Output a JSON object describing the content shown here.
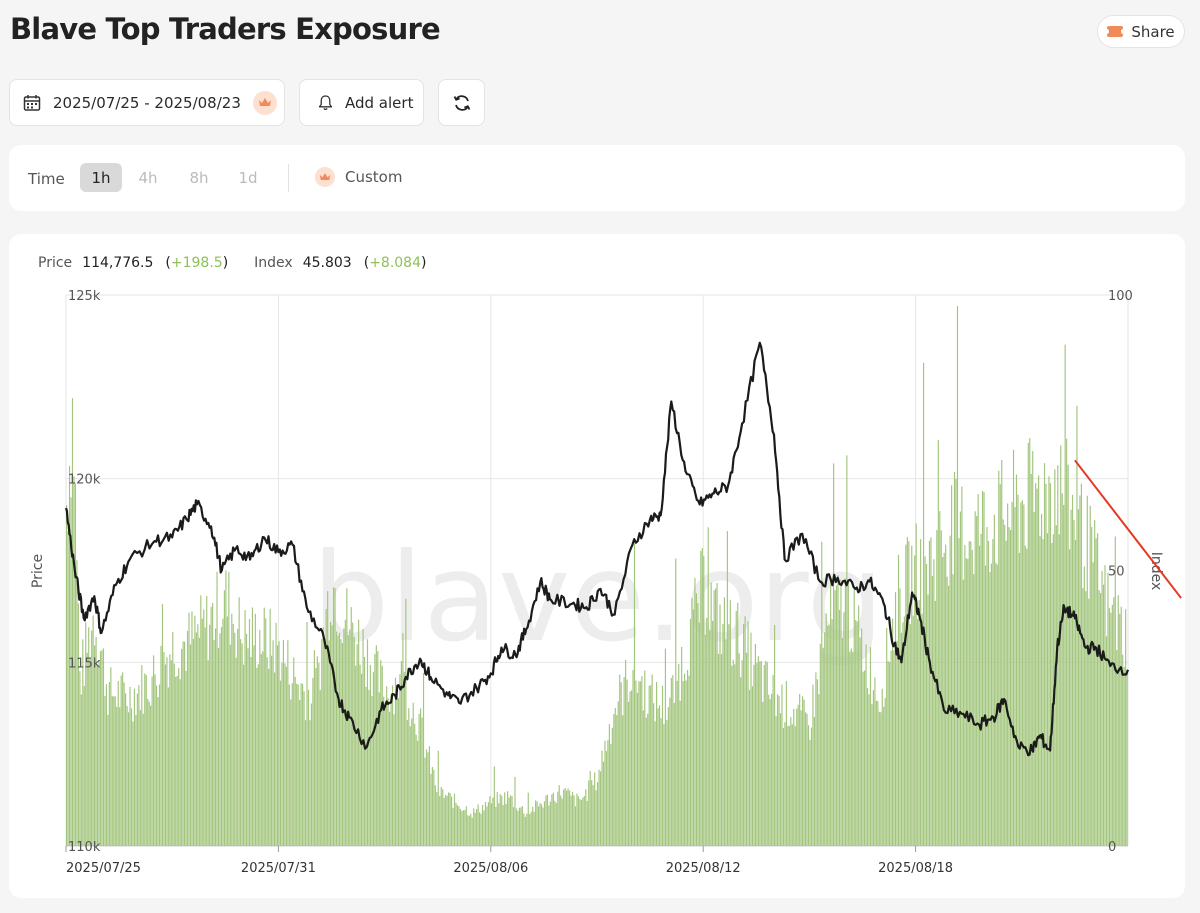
{
  "header": {
    "title": "Blave Top Traders Exposure",
    "share_label": "Share"
  },
  "toolbar": {
    "date_range": "2025/07/25 - 2025/08/23",
    "add_alert_label": "Add alert"
  },
  "timeframe": {
    "label": "Time",
    "options": [
      "1h",
      "4h",
      "8h",
      "1d"
    ],
    "active": "1h",
    "custom_label": "Custom"
  },
  "legend": {
    "price_label": "Price",
    "price_value": "114,776.5",
    "price_change": "+198.5",
    "index_label": "Index",
    "index_value": "45.803",
    "index_change": "+8.084"
  },
  "watermark": "blave.org",
  "colors": {
    "bar": "#a3c67e",
    "line": "#1b1b1b",
    "accent": "#f08a5d",
    "annotation": "#e53a22",
    "positive": "#8fc05a"
  },
  "chart_data": {
    "type": "bar+line",
    "xlabel": "",
    "ylabel": "Price",
    "y2label": "Index",
    "ylim": [
      110000,
      125000
    ],
    "y2lim": [
      0,
      100
    ],
    "yticks": [
      {
        "v": 125000,
        "label": "125k"
      },
      {
        "v": 120000,
        "label": "120k"
      },
      {
        "v": 115000,
        "label": "115k"
      },
      {
        "v": 110000,
        "label": "110k"
      }
    ],
    "y2ticks": [
      {
        "v": 100,
        "label": "100"
      },
      {
        "v": 50,
        "label": "50"
      },
      {
        "v": 0,
        "label": "0"
      }
    ],
    "xticks": [
      {
        "d": 0,
        "label": "2025/07/25"
      },
      {
        "d": 6,
        "label": "2025/07/31"
      },
      {
        "d": 12,
        "label": "2025/08/06"
      },
      {
        "d": 18,
        "label": "2025/08/12"
      },
      {
        "d": 24,
        "label": "2025/08/18"
      }
    ],
    "x_range_days": 30,
    "series": [
      {
        "name": "Index",
        "kind": "bar",
        "axis": "y2",
        "points": [
          [
            0,
            60
          ],
          [
            0.2,
            80
          ],
          [
            0.4,
            30
          ],
          [
            0.8,
            42
          ],
          [
            1.2,
            28
          ],
          [
            1.8,
            27
          ],
          [
            2.4,
            30
          ],
          [
            3,
            36
          ],
          [
            3.5,
            37
          ],
          [
            4,
            40
          ],
          [
            4.5,
            45
          ],
          [
            5,
            38
          ],
          [
            5.5,
            38
          ],
          [
            6,
            36
          ],
          [
            6.5,
            30
          ],
          [
            7,
            26
          ],
          [
            7.5,
            48
          ],
          [
            8,
            40
          ],
          [
            8.5,
            35
          ],
          [
            9,
            28
          ],
          [
            9.5,
            30
          ],
          [
            10,
            22
          ],
          [
            10.5,
            10
          ],
          [
            11,
            8
          ],
          [
            11.5,
            6
          ],
          [
            12,
            8
          ],
          [
            12.5,
            9
          ],
          [
            13,
            6
          ],
          [
            13.5,
            8
          ],
          [
            14,
            10
          ],
          [
            14.5,
            8
          ],
          [
            15,
            12
          ],
          [
            15.5,
            25
          ],
          [
            16,
            32
          ],
          [
            16.5,
            27
          ],
          [
            17,
            25
          ],
          [
            17.5,
            35
          ],
          [
            18,
            47
          ],
          [
            18.5,
            40
          ],
          [
            19,
            38
          ],
          [
            19.5,
            32
          ],
          [
            20,
            27
          ],
          [
            20.5,
            25
          ],
          [
            21,
            22
          ],
          [
            21.5,
            40
          ],
          [
            22,
            45
          ],
          [
            22.5,
            36
          ],
          [
            23,
            27
          ],
          [
            23.5,
            45
          ],
          [
            24,
            50
          ],
          [
            24.5,
            52
          ],
          [
            25,
            58
          ],
          [
            25.5,
            57
          ],
          [
            26,
            58
          ],
          [
            26.5,
            60
          ],
          [
            27,
            62
          ],
          [
            27.5,
            64
          ],
          [
            28,
            66
          ],
          [
            28.5,
            60
          ],
          [
            29,
            52
          ],
          [
            29.5,
            42
          ],
          [
            30,
            38
          ]
        ]
      },
      {
        "name": "Price",
        "kind": "line",
        "axis": "y",
        "points": [
          [
            0,
            119.2
          ],
          [
            0.25,
            117.5
          ],
          [
            0.5,
            116.2
          ],
          [
            0.8,
            116.8
          ],
          [
            1,
            115.8
          ],
          [
            1.4,
            117.1
          ],
          [
            1.8,
            117.8
          ],
          [
            2.5,
            118.3
          ],
          [
            3,
            118.4
          ],
          [
            3.4,
            118.9
          ],
          [
            3.7,
            119.3
          ],
          [
            4.1,
            118.7
          ],
          [
            4.4,
            117.5
          ],
          [
            4.8,
            118.1
          ],
          [
            5.2,
            117.8
          ],
          [
            5.6,
            118.4
          ],
          [
            6,
            118.0
          ],
          [
            6.4,
            118.2
          ],
          [
            6.8,
            116.5
          ],
          [
            7.3,
            115.6
          ],
          [
            7.7,
            114.0
          ],
          [
            8,
            113.5
          ],
          [
            8.5,
            112.7
          ],
          [
            8.9,
            113.7
          ],
          [
            9.3,
            114.1
          ],
          [
            9.6,
            114.6
          ],
          [
            10,
            115.1
          ],
          [
            10.3,
            114.6
          ],
          [
            10.8,
            114.1
          ],
          [
            11.1,
            113.9
          ],
          [
            11.6,
            114.3
          ],
          [
            12,
            114.7
          ],
          [
            12.3,
            115.4
          ],
          [
            12.7,
            115.2
          ],
          [
            13,
            115.9
          ],
          [
            13.4,
            117.2
          ],
          [
            13.7,
            116.7
          ],
          [
            14.3,
            116.6
          ],
          [
            14.7,
            116.5
          ],
          [
            15.1,
            117.0
          ],
          [
            15.5,
            116.3
          ],
          [
            16,
            118.2
          ],
          [
            16.5,
            118.9
          ],
          [
            16.8,
            119.0
          ],
          [
            17.1,
            122.1
          ],
          [
            17.5,
            120.2
          ],
          [
            17.9,
            119.3
          ],
          [
            18.3,
            119.6
          ],
          [
            18.7,
            119.8
          ],
          [
            19.1,
            121.5
          ],
          [
            19.6,
            123.7
          ],
          [
            20,
            121.2
          ],
          [
            20.3,
            117.8
          ],
          [
            20.8,
            118.5
          ],
          [
            21.3,
            117.2
          ],
          [
            21.8,
            117.3
          ],
          [
            22.3,
            117.0
          ],
          [
            22.7,
            117.2
          ],
          [
            23.1,
            116.6
          ],
          [
            23.4,
            115.5
          ],
          [
            23.6,
            115.0
          ],
          [
            23.9,
            116.9
          ],
          [
            24.1,
            116.3
          ],
          [
            24.4,
            115.0
          ],
          [
            24.8,
            113.7
          ],
          [
            25.3,
            113.6
          ],
          [
            25.8,
            113.3
          ],
          [
            26.2,
            113.5
          ],
          [
            26.5,
            114.0
          ],
          [
            26.9,
            112.7
          ],
          [
            27.3,
            112.6
          ],
          [
            27.5,
            113.0
          ],
          [
            27.8,
            112.6
          ],
          [
            28,
            115.4
          ],
          [
            28.2,
            116.5
          ],
          [
            28.5,
            116.2
          ],
          [
            28.8,
            115.4
          ],
          [
            29.1,
            115.4
          ],
          [
            29.5,
            114.9
          ],
          [
            30,
            114.8
          ]
        ]
      }
    ],
    "annotation_line": {
      "from": [
        28.5,
        70
      ],
      "to": [
        31.5,
        45
      ]
    }
  }
}
